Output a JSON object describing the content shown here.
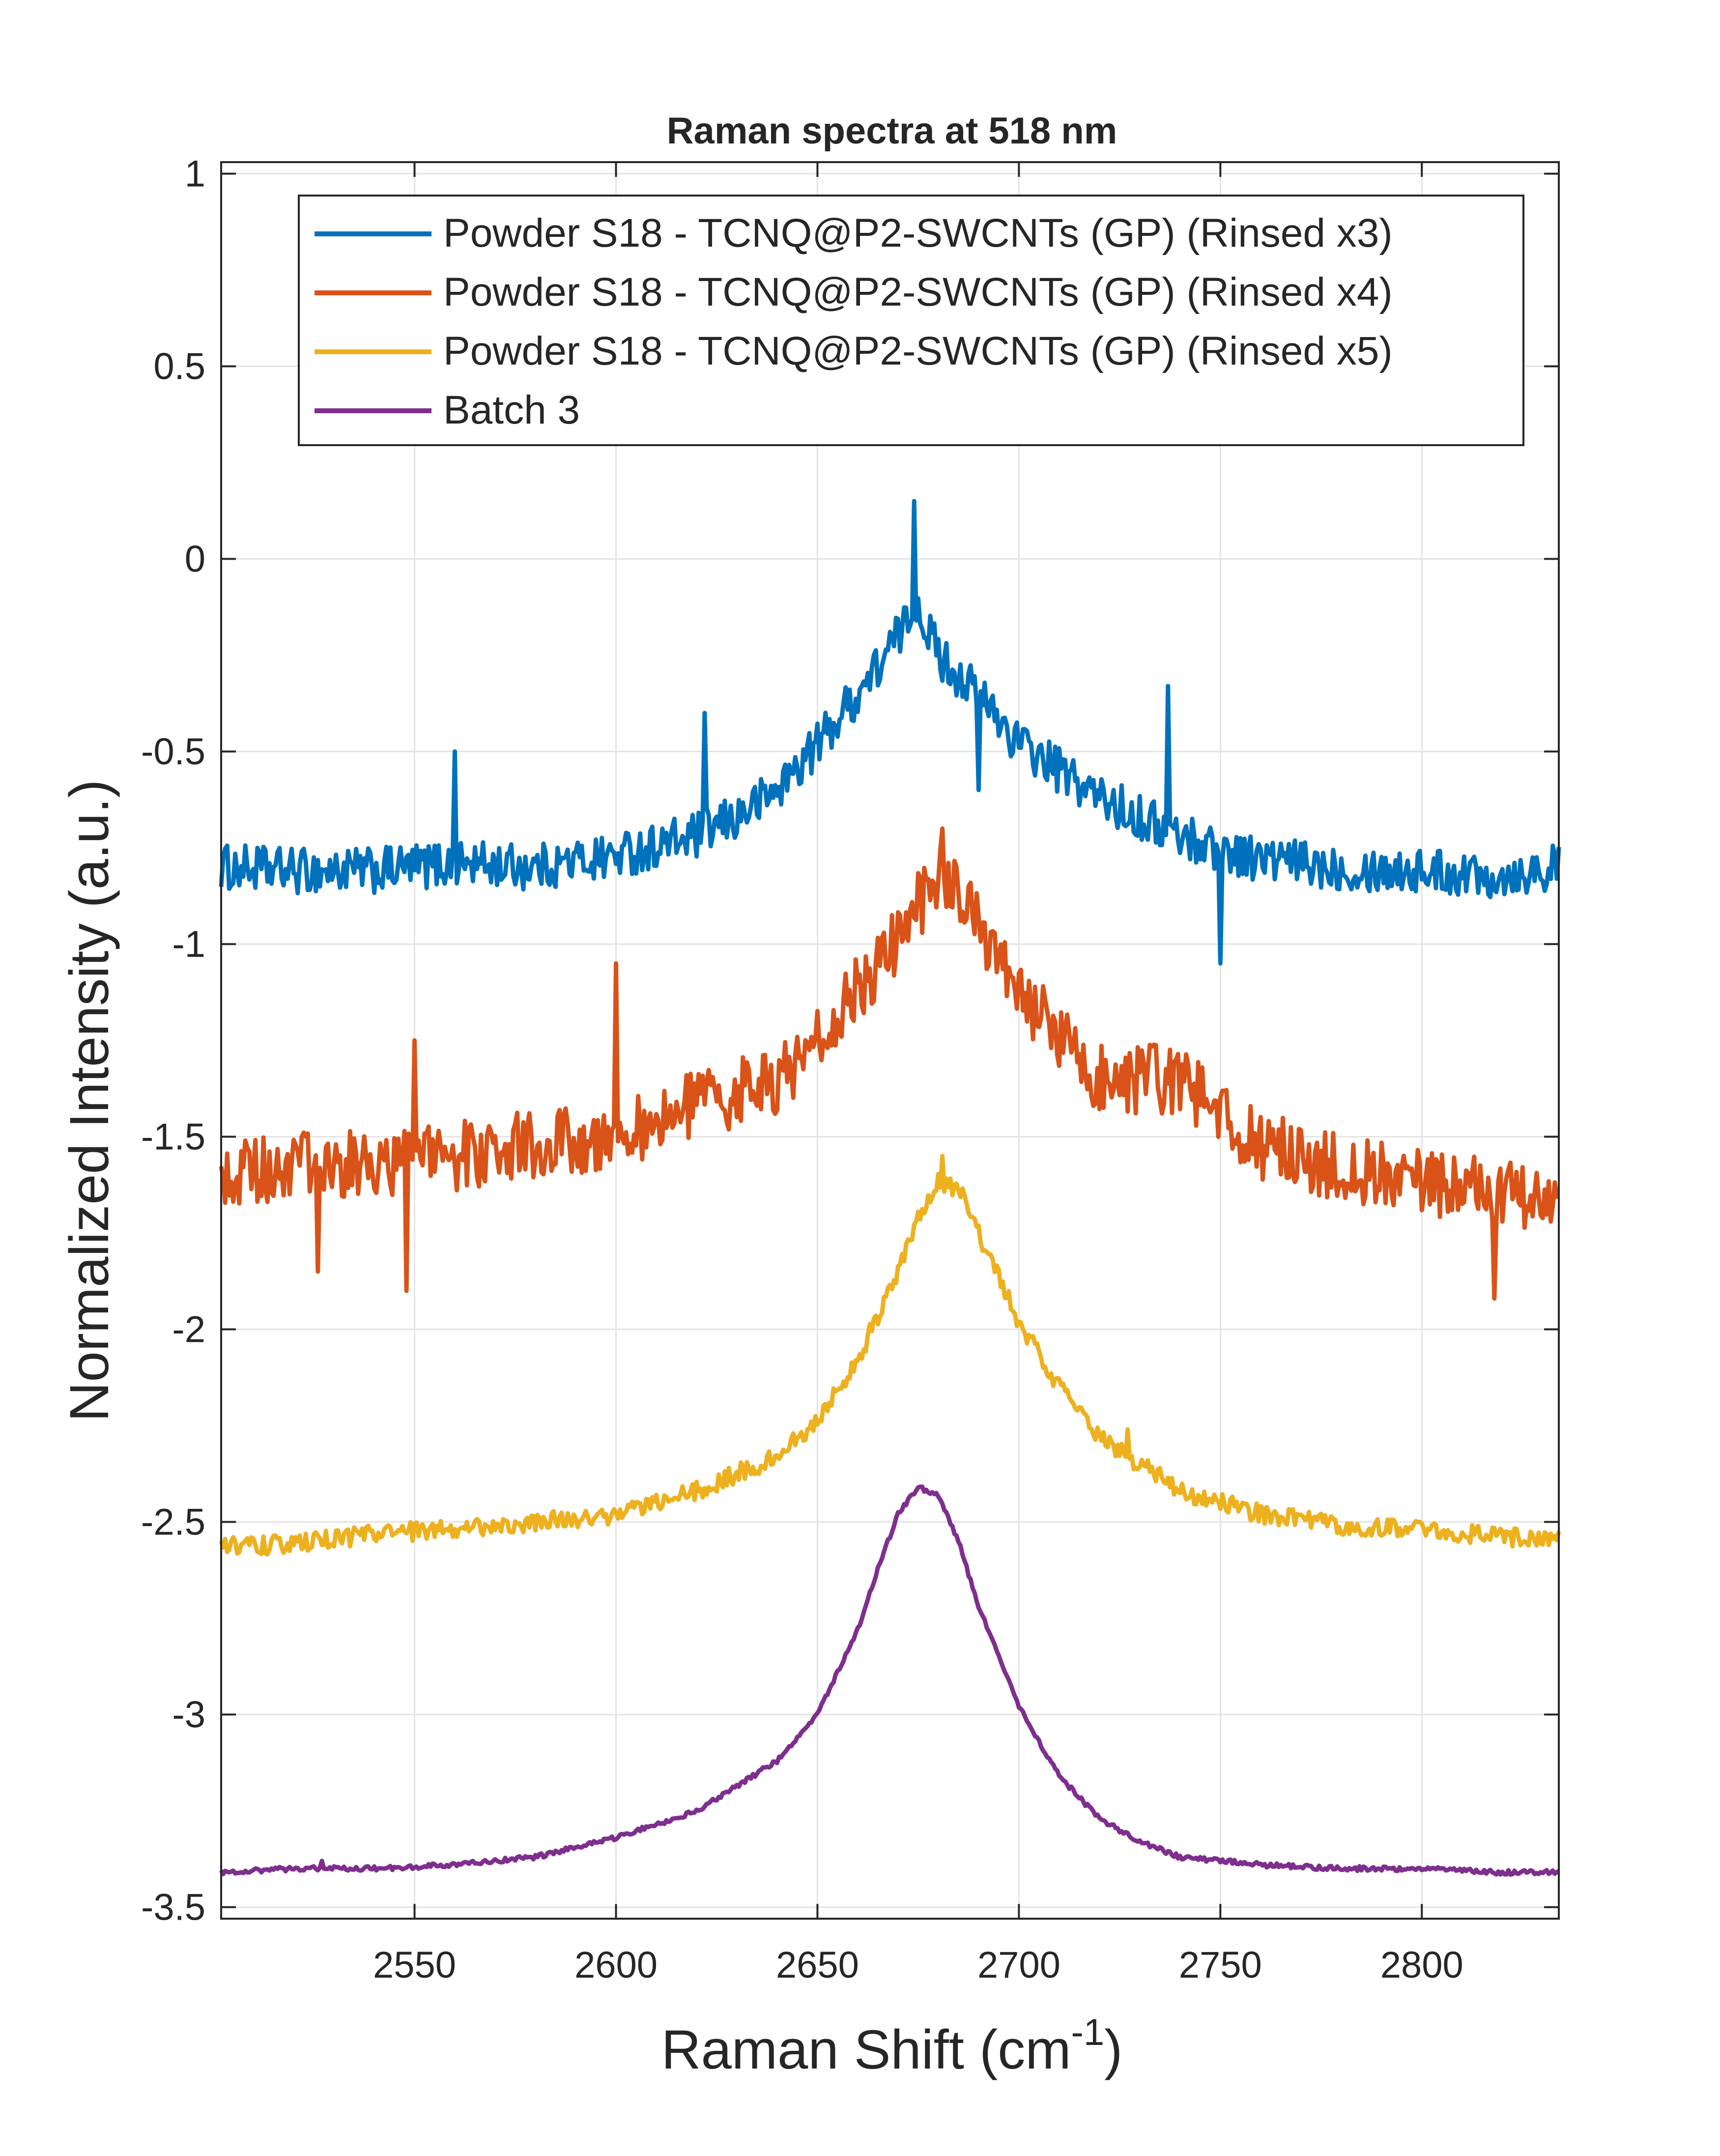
{
  "chart_data": {
    "type": "line",
    "title": "Raman spectra at 518 nm",
    "xlabel": "Raman Shift (cm",
    "xlabel_sup": "-1",
    "xlabel_close": ")",
    "ylabel": "Normalized Intensity (a.u.)",
    "xlim": [
      2502,
      2834
    ],
    "ylim": [
      -3.53,
      1.03
    ],
    "x_ticks": [
      2550,
      2600,
      2650,
      2700,
      2750,
      2800
    ],
    "x_tick_labels": [
      "2550",
      "2600",
      "2650",
      "2700",
      "2750",
      "2800"
    ],
    "y_ticks": [
      1,
      0.5,
      0,
      -0.5,
      -1,
      -1.5,
      -2,
      -2.5,
      -3,
      -3.5
    ],
    "y_tick_labels": [
      "1",
      "0.5",
      "0",
      "-0.5",
      "-1",
      "-1.5",
      "-2",
      "-2.5",
      "-3",
      "-3.5"
    ],
    "grid": true,
    "legend_position": "top-right",
    "series": [
      {
        "name": "Powder S18 - TCNQ@P2-SWCNTs (GP) (Rinsed x3)",
        "color": "#0072BD",
        "x": [
          2502,
          2520,
          2540,
          2560,
          2580,
          2600,
          2620,
          2630,
          2640,
          2650,
          2660,
          2665,
          2670,
          2675,
          2680,
          2685,
          2690,
          2700,
          2710,
          2720,
          2740,
          2760,
          2780,
          2800,
          2820,
          2834
        ],
        "y": [
          -0.8,
          -0.81,
          -0.81,
          -0.79,
          -0.8,
          -0.77,
          -0.72,
          -0.67,
          -0.6,
          -0.48,
          -0.35,
          -0.28,
          -0.2,
          -0.12,
          -0.25,
          -0.3,
          -0.35,
          -0.48,
          -0.55,
          -0.62,
          -0.72,
          -0.78,
          -0.8,
          -0.81,
          -0.82,
          -0.8
        ],
        "noise": 0.06,
        "spikes": [
          [
            2560,
            -0.5
          ],
          [
            2622,
            -0.4
          ],
          [
            2674,
            0.15
          ],
          [
            2737,
            -0.33
          ],
          [
            2750,
            -1.05
          ],
          [
            2690,
            -0.6
          ]
        ]
      },
      {
        "name": "Powder S18 - TCNQ@P2-SWCNTs (GP) (Rinsed x4)",
        "color": "#D95319",
        "x": [
          2502,
          2520,
          2540,
          2560,
          2580,
          2600,
          2620,
          2640,
          2650,
          2660,
          2670,
          2680,
          2690,
          2700,
          2710,
          2720,
          2730,
          2740,
          2750,
          2760,
          2780,
          2800,
          2820,
          2834
        ],
        "y": [
          -1.6,
          -1.58,
          -1.57,
          -1.55,
          -1.52,
          -1.5,
          -1.42,
          -1.35,
          -1.25,
          -1.12,
          -0.98,
          -0.82,
          -0.95,
          -1.12,
          -1.25,
          -1.35,
          -1.35,
          -1.35,
          -1.45,
          -1.52,
          -1.58,
          -1.62,
          -1.65,
          -1.68
        ],
        "noise": 0.09,
        "spikes": [
          [
            2548,
            -1.9
          ],
          [
            2526,
            -1.85
          ],
          [
            2681,
            -0.7
          ],
          [
            2818,
            -1.92
          ],
          [
            2600,
            -1.05
          ],
          [
            2550,
            -1.25
          ]
        ]
      },
      {
        "name": "Powder S18 - TCNQ@P2-SWCNTs (GP) (Rinsed x5)",
        "color": "#EDB120",
        "x": [
          2502,
          2520,
          2540,
          2560,
          2580,
          2600,
          2620,
          2640,
          2650,
          2660,
          2670,
          2675,
          2680,
          2685,
          2690,
          2700,
          2710,
          2720,
          2730,
          2740,
          2760,
          2780,
          2800,
          2820,
          2834
        ],
        "y": [
          -2.56,
          -2.56,
          -2.53,
          -2.52,
          -2.5,
          -2.48,
          -2.42,
          -2.33,
          -2.24,
          -2.08,
          -1.85,
          -1.72,
          -1.62,
          -1.63,
          -1.75,
          -1.98,
          -2.15,
          -2.28,
          -2.35,
          -2.42,
          -2.48,
          -2.51,
          -2.52,
          -2.54,
          -2.54
        ],
        "noise": 0.025,
        "spikes": [
          [
            2681,
            -1.55
          ],
          [
            2727,
            -2.26
          ]
        ]
      },
      {
        "name": "Batch 3",
        "color": "#7E2F8E",
        "x": [
          2502,
          2520,
          2540,
          2560,
          2580,
          2600,
          2620,
          2640,
          2650,
          2660,
          2665,
          2670,
          2675,
          2680,
          2685,
          2690,
          2700,
          2710,
          2720,
          2730,
          2740,
          2760,
          2780,
          2800,
          2820,
          2834
        ],
        "y": [
          -3.41,
          -3.4,
          -3.4,
          -3.39,
          -3.37,
          -3.32,
          -3.25,
          -3.12,
          -3.0,
          -2.78,
          -2.62,
          -2.48,
          -2.41,
          -2.43,
          -2.55,
          -2.72,
          -2.98,
          -3.16,
          -3.27,
          -3.33,
          -3.37,
          -3.39,
          -3.4,
          -3.4,
          -3.41,
          -3.41
        ],
        "noise": 0.006,
        "spikes": [
          [
            2527,
            -3.38
          ]
        ]
      }
    ]
  }
}
